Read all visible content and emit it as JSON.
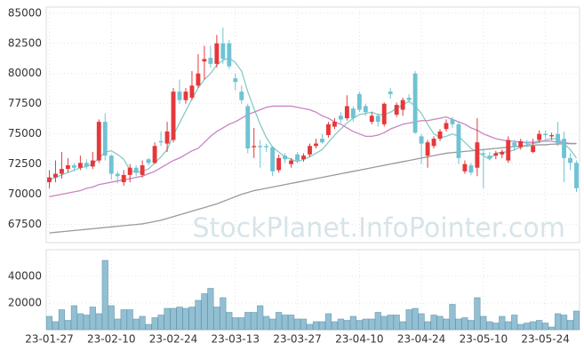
{
  "chart_data": {
    "type": "candlestick",
    "watermark": "StockPlanet.InfoPointer.com",
    "categories": [
      "23-01-27",
      null,
      null,
      null,
      null,
      null,
      null,
      null,
      null,
      null,
      "23-02-10",
      null,
      null,
      null,
      null,
      null,
      null,
      null,
      null,
      null,
      "23-02-24",
      null,
      null,
      null,
      null,
      null,
      null,
      null,
      null,
      null,
      "23-03-13",
      null,
      null,
      null,
      null,
      null,
      null,
      null,
      null,
      null,
      "23-03-27",
      null,
      null,
      null,
      null,
      null,
      null,
      null,
      null,
      null,
      "23-04-10",
      null,
      null,
      null,
      null,
      null,
      null,
      null,
      null,
      null,
      "23-04-24",
      null,
      null,
      null,
      null,
      null,
      null,
      null,
      null,
      null,
      "23-05-10",
      null,
      null,
      null,
      null,
      null,
      null,
      null,
      null,
      null,
      "23-05-24",
      null,
      null,
      null,
      null,
      null
    ],
    "open": [
      71000,
      71400,
      71700,
      72100,
      72400,
      72200,
      72600,
      72300,
      72800,
      76000,
      73200,
      71700,
      71000,
      71600,
      72200,
      71600,
      72900,
      72600,
      74400,
      74200,
      74500,
      78500,
      77800,
      78000,
      79000,
      81000,
      81300,
      80800,
      82500,
      82500,
      79600,
      78500,
      77300,
      73900,
      74000,
      74000,
      73900,
      72000,
      73200,
      72500,
      73300,
      72900,
      73300,
      74000,
      74600,
      74900,
      75600,
      76500,
      76300,
      77100,
      78300,
      77300,
      76000,
      76500,
      75800,
      78500,
      76600,
      77000,
      78000,
      80000,
      74800,
      73200,
      74000,
      74600,
      75400,
      76200,
      75800,
      71900,
      72400,
      72200,
      73400,
      73200,
      73200,
      73300,
      72800,
      74300,
      73900,
      74300,
      73500,
      74500,
      75000,
      74800,
      75000,
      74600,
      73000,
      72600
    ],
    "high": [
      72000,
      72800,
      73500,
      73000,
      72600,
      73200,
      72900,
      73500,
      76200,
      76700,
      73300,
      71900,
      72000,
      72500,
      72400,
      72800,
      73000,
      74300,
      75200,
      76000,
      78800,
      79500,
      78800,
      80200,
      81600,
      82300,
      82300,
      83200,
      83800,
      82800,
      80000,
      79000,
      77500,
      75500,
      74500,
      74200,
      74000,
      73300,
      73400,
      73000,
      73500,
      73400,
      74200,
      74600,
      75000,
      76000,
      76300,
      76800,
      78200,
      77300,
      78500,
      77500,
      76800,
      76700,
      77600,
      78800,
      77600,
      78000,
      78300,
      80200,
      75000,
      74500,
      74800,
      75400,
      76200,
      76400,
      76000,
      72800,
      72600,
      76300,
      73800,
      73500,
      73600,
      73700,
      74800,
      74500,
      74600,
      74500,
      74600,
      75300,
      75300,
      75100,
      76000,
      75200,
      73400,
      72800
    ],
    "low": [
      70500,
      71000,
      71300,
      71800,
      71900,
      72000,
      72100,
      72100,
      72600,
      72800,
      71200,
      70900,
      70700,
      71000,
      71500,
      71400,
      72400,
      72500,
      74000,
      73500,
      74300,
      77500,
      77500,
      77800,
      78800,
      79500,
      80500,
      80500,
      80800,
      80400,
      78600,
      77500,
      73400,
      73000,
      72200,
      73500,
      71500,
      71800,
      72600,
      72200,
      72600,
      72700,
      73100,
      73800,
      74200,
      74700,
      75400,
      75900,
      76100,
      76000,
      76800,
      76500,
      75800,
      75600,
      75600,
      77900,
      76400,
      76500,
      77600,
      75000,
      72500,
      72200,
      73800,
      74400,
      75200,
      75500,
      72500,
      71700,
      71600,
      71500,
      70500,
      72800,
      72900,
      73000,
      72600,
      73600,
      73700,
      73900,
      73400,
      74300,
      74600,
      74500,
      74000,
      71000,
      72000,
      70200
    ],
    "close": [
      71400,
      71700,
      72100,
      72400,
      72200,
      72600,
      72300,
      72800,
      76000,
      73200,
      71700,
      71500,
      71600,
      72200,
      71800,
      72400,
      72600,
      74000,
      74300,
      75200,
      78500,
      77800,
      78500,
      79000,
      80000,
      81200,
      80800,
      82500,
      81200,
      80600,
      79300,
      77800,
      73800,
      74000,
      73900,
      73900,
      71900,
      73000,
      72900,
      72800,
      72800,
      73200,
      74000,
      74200,
      74300,
      75800,
      76000,
      76200,
      77300,
      76300,
      77000,
      76800,
      76500,
      76000,
      77500,
      78300,
      77400,
      77800,
      77800,
      75100,
      74200,
      74300,
      74600,
      75200,
      75900,
      75800,
      73000,
      72500,
      71800,
      74300,
      73300,
      73000,
      73400,
      73500,
      74500,
      74000,
      74400,
      74200,
      74000,
      75000,
      74900,
      74900,
      74200,
      73000,
      72600,
      70500
    ],
    "up_color": "#e5383b",
    "down_color": "#6fc3d3",
    "ma": [
      {
        "color": "#86cbc6",
        "values": [
          71200,
          71400,
          71600,
          71800,
          72000,
          72200,
          72300,
          72500,
          73000,
          73500,
          73600,
          73300,
          72900,
          72000,
          71800,
          71900,
          72100,
          72600,
          73100,
          73700,
          74900,
          75900,
          76900,
          77900,
          78800,
          79500,
          80000,
          80700,
          81100,
          81300,
          80900,
          80200,
          78500,
          77100,
          75800,
          74700,
          73900,
          73500,
          73100,
          72900,
          72700,
          72900,
          73100,
          73400,
          73700,
          74300,
          74900,
          75400,
          75900,
          76300,
          76600,
          76700,
          76800,
          76600,
          76600,
          76800,
          77100,
          77400,
          77700,
          77300,
          76700,
          75800,
          75000,
          74700,
          74800,
          75000,
          74800,
          74300,
          73800,
          73500,
          73200,
          72900,
          73400,
          73500,
          73500,
          73700,
          73900,
          74100,
          74200,
          74300,
          74500,
          74600,
          74600,
          74200,
          73700,
          73000
        ]
      },
      {
        "color": "#c884c4",
        "values": [
          69800,
          69900,
          70000,
          70100,
          70200,
          70300,
          70500,
          70600,
          70800,
          70900,
          71000,
          71100,
          71200,
          71300,
          71400,
          71500,
          71700,
          71900,
          72200,
          72500,
          72800,
          73000,
          73300,
          73600,
          73800,
          74300,
          74800,
          75200,
          75500,
          75800,
          76000,
          76300,
          76600,
          76800,
          77000,
          77200,
          77300,
          77300,
          77300,
          77300,
          77200,
          77100,
          77000,
          76800,
          76500,
          76300,
          76000,
          75800,
          75500,
          75200,
          75000,
          74800,
          74800,
          74900,
          75100,
          75400,
          75600,
          75800,
          75900,
          76000,
          76100,
          76100,
          76200,
          76300,
          76400,
          76200,
          76000,
          75800,
          75500,
          75300,
          75000,
          74800,
          74600,
          74500,
          74400,
          74400,
          74300,
          74300,
          74300,
          74400,
          74400,
          74400,
          74300,
          74300,
          74200,
          74200
        ]
      },
      {
        "color": "#9a9a9a",
        "values": [
          66800,
          66850,
          66900,
          66950,
          67000,
          67050,
          67100,
          67150,
          67200,
          67250,
          67300,
          67350,
          67400,
          67450,
          67500,
          67550,
          67650,
          67750,
          67850,
          68000,
          68150,
          68300,
          68450,
          68600,
          68750,
          68900,
          69050,
          69200,
          69400,
          69600,
          69800,
          70000,
          70150,
          70300,
          70400,
          70500,
          70600,
          70700,
          70800,
          70900,
          71000,
          71100,
          71200,
          71300,
          71400,
          71500,
          71600,
          71700,
          71800,
          71900,
          72000,
          72100,
          72200,
          72300,
          72400,
          72500,
          72600,
          72700,
          72800,
          72900,
          73000,
          73100,
          73200,
          73300,
          73400,
          73450,
          73500,
          73550,
          73600,
          73650,
          73700,
          73750,
          73800,
          73850,
          73900,
          73950,
          74000,
          74000,
          74050,
          74100,
          74100,
          74150,
          74150,
          74200,
          74200,
          74200
        ]
      }
    ],
    "ylim": [
      66000,
      85500
    ],
    "yticks": [
      67500,
      70000,
      72500,
      75000,
      77500,
      80000,
      82500,
      85000
    ],
    "grid": true,
    "volume": {
      "color": "#93bfd2",
      "values": [
        10000,
        6000,
        15000,
        7000,
        18000,
        12000,
        11000,
        17000,
        12000,
        52000,
        18000,
        8000,
        15000,
        15000,
        8000,
        10000,
        4000,
        9000,
        11000,
        16000,
        16000,
        17000,
        16000,
        17000,
        22000,
        27000,
        31000,
        17000,
        24000,
        13000,
        9000,
        9000,
        13000,
        13000,
        18000,
        10000,
        8000,
        13000,
        11000,
        11000,
        8000,
        8000,
        4000,
        6000,
        6000,
        12000,
        6000,
        8000,
        7000,
        10000,
        7000,
        8000,
        8000,
        13000,
        10000,
        11000,
        11000,
        6000,
        15000,
        16000,
        12000,
        6000,
        11000,
        10000,
        8000,
        19000,
        8000,
        9000,
        7000,
        24000,
        10000,
        6000,
        5000,
        10000,
        6000,
        11000,
        4000,
        5000,
        6000,
        7000,
        5000,
        2000,
        12000,
        11000,
        7000,
        14000
      ],
      "ylim": [
        0,
        60000
      ],
      "yticks": [
        20000,
        40000
      ]
    }
  }
}
